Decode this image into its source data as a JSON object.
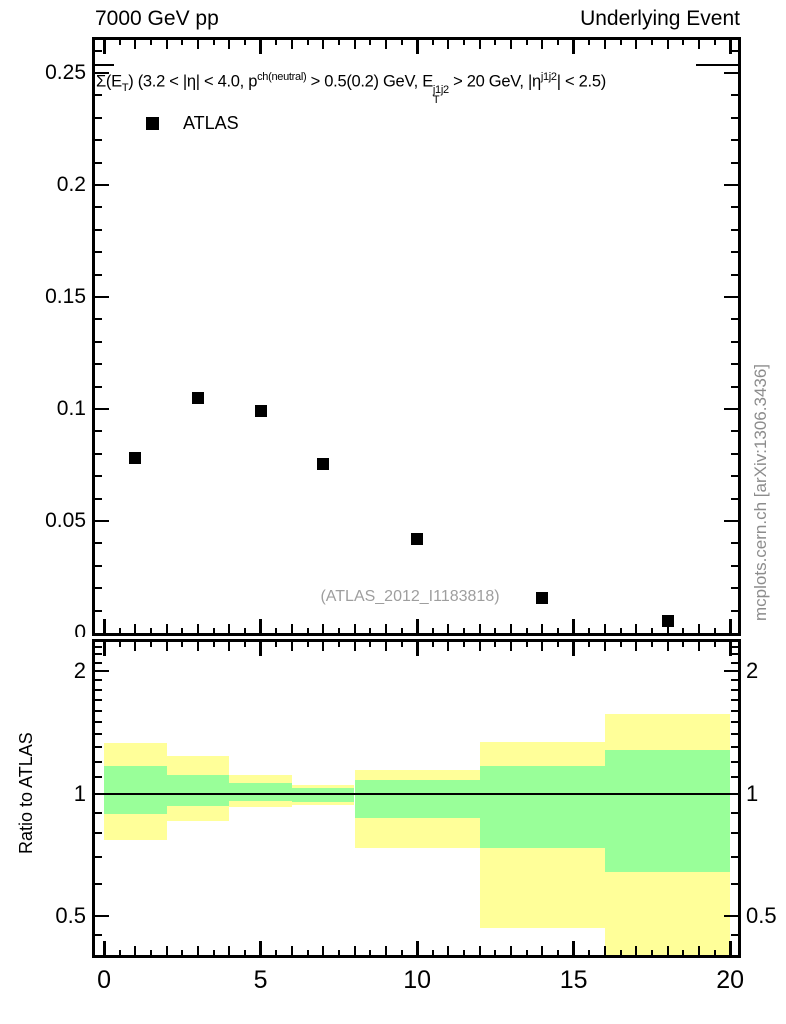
{
  "header": {
    "left_title": "7000 GeV pp",
    "right_title": "Underlying Event"
  },
  "annotation": {
    "segments": [
      {
        "k": "b",
        "t": "Σ(E"
      },
      {
        "k": "sub",
        "t": "T"
      },
      {
        "k": "b",
        "t": ") (3.2 < |η| < 4.0, p"
      },
      {
        "k": "sup",
        "t": "ch(neutral)"
      },
      {
        "k": "b",
        "t": " > 0.5(0.2) GeV, E"
      },
      {
        "k": "stack",
        "sup": "j1j2",
        "sub": "T"
      },
      {
        "k": "b",
        "t": " > 20 GeV, |η"
      },
      {
        "k": "sup",
        "t": "j1j2"
      },
      {
        "k": "b",
        "t": "| < 2.5)"
      }
    ]
  },
  "legend": {
    "label": "ATLAS",
    "marker": "filled-square"
  },
  "watermark": "(ATLAS_2012_I1183818)",
  "side_note": "mcplots.cern.ch [arXiv:1306.3436]",
  "colors": {
    "outer_band": "#ffff99",
    "inner_band": "#99ff99",
    "marker": "#000000",
    "watermark": "#9e9e9e",
    "side_note": "#8c8c8c",
    "frame": "#000000"
  },
  "chart_data": [
    {
      "type": "scatter",
      "title": "Sum(ET) vs x, forward transverse energy flow",
      "legend_entries": [
        "ATLAS"
      ],
      "x": [
        1,
        3,
        5,
        7,
        10,
        14,
        18
      ],
      "y": [
        0.078,
        0.105,
        0.0993,
        0.0753,
        0.042,
        0.0156,
        0.0053
      ],
      "marker": "filled-square",
      "xlim": [
        -0.29,
        20.25
      ],
      "ylim": [
        0,
        0.2647
      ],
      "x_axis": {
        "labels": [
          {
            "v": 0,
            "t": "0"
          },
          {
            "v": 5,
            "t": "5"
          },
          {
            "v": 10,
            "t": "10"
          },
          {
            "v": 15,
            "t": "15"
          },
          {
            "v": 20,
            "t": "20"
          }
        ],
        "minor_step": 0.5,
        "medium_step": 1,
        "major_step": 5
      },
      "y_axis": {
        "labels": [
          {
            "v": 0,
            "t": "0"
          },
          {
            "v": 0.05,
            "t": "0.05"
          },
          {
            "v": 0.1,
            "t": "0.1"
          },
          {
            "v": 0.15,
            "t": "0.15"
          },
          {
            "v": 0.2,
            "t": "0.2"
          },
          {
            "v": 0.25,
            "t": "0.25"
          }
        ],
        "minor_step": 0.01,
        "major_step": 0.05
      },
      "grid": false,
      "legend_position": "top-left"
    },
    {
      "type": "area",
      "subtype": "ratio-bands",
      "ylabel": "Ratio to ATLAS",
      "yscale": "log",
      "ylim": [
        0.402,
        2.36
      ],
      "xlim": [
        -0.29,
        20.25
      ],
      "reference_line": 1,
      "y_axis": {
        "labels": [
          {
            "v": 2,
            "t": "2"
          },
          {
            "v": 1,
            "t": "1"
          },
          {
            "v": 0.5,
            "t": "0.5"
          }
        ],
        "majors": [
          0.5,
          1,
          2
        ],
        "minors": [
          0.45,
          0.5,
          0.6,
          0.7,
          0.8,
          0.9,
          1.0,
          1.1,
          1.2,
          1.3,
          1.4,
          1.5,
          1.6,
          1.7,
          1.8,
          1.9,
          2.0,
          2.1,
          2.2,
          2.3
        ]
      },
      "bin_edges": [
        0,
        2,
        4,
        6,
        8,
        12,
        16,
        20
      ],
      "outer_band": {
        "hi": [
          1.337,
          1.242,
          1.11,
          1.053,
          1.145,
          1.344,
          1.574
        ],
        "lo": [
          0.769,
          0.857,
          0.93,
          0.94,
          0.735,
          0.469,
          0.4
        ]
      },
      "inner_band": {
        "hi": [
          1.168,
          1.11,
          1.066,
          1.035,
          1.082,
          1.168,
          1.285
        ],
        "lo": [
          0.891,
          0.932,
          0.962,
          0.955,
          0.87,
          0.735,
          0.643
        ]
      }
    }
  ]
}
